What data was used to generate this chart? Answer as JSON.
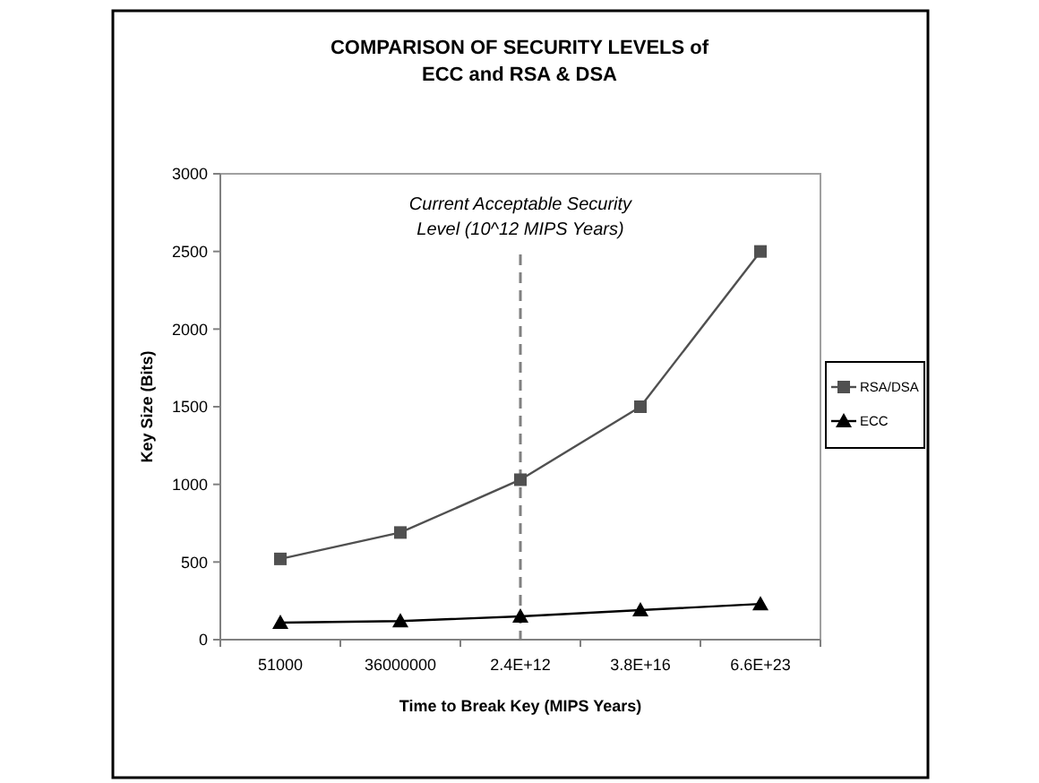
{
  "chart_data": {
    "type": "line",
    "title": "COMPARISON OF SECURITY LEVELS of\nECC and RSA & DSA",
    "xlabel": "Time to Break Key (MIPS Years)",
    "ylabel": "Key Size (Bits)",
    "categories": [
      "51000",
      "36000000",
      "2.4E+12",
      "3.8E+16",
      "6.6E+23"
    ],
    "series": [
      {
        "name": "RSA/DSA",
        "color": "#505050",
        "marker": "square",
        "values": [
          520,
          690,
          1030,
          1500,
          2500
        ]
      },
      {
        "name": "ECC",
        "color": "#000000",
        "marker": "triangle",
        "values": [
          110,
          120,
          150,
          190,
          230
        ]
      }
    ],
    "ylim": [
      0,
      3000
    ],
    "yticks": [
      0,
      500,
      1000,
      1500,
      2000,
      2500,
      3000
    ],
    "grid": false,
    "legend": "right",
    "ref_lines": [
      {
        "axis": "x",
        "value": "2.4E+12",
        "label": "Current Acceptable Security Level (10^12 MIPS Years)",
        "color": "#808080",
        "line_style": "dashed"
      }
    ]
  }
}
